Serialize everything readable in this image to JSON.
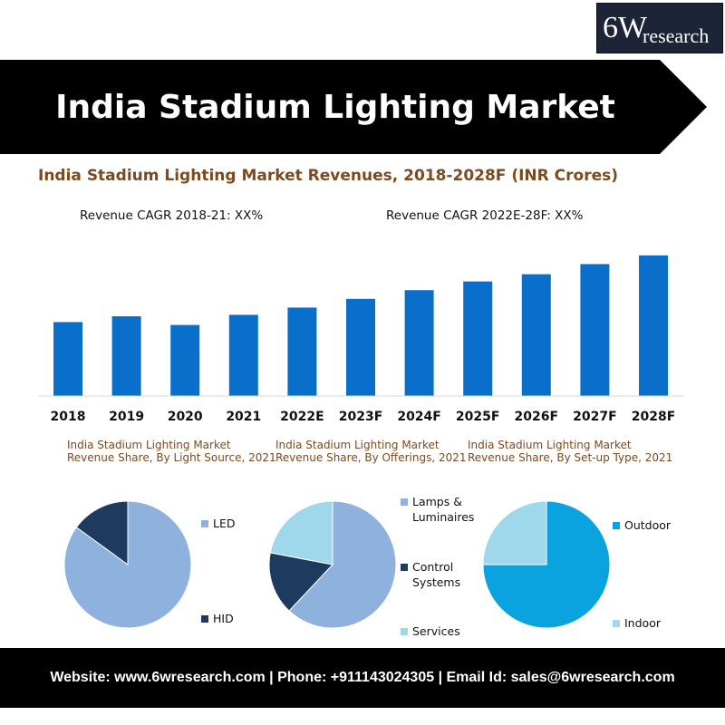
{
  "logo": {
    "big": "6W",
    "small": "research"
  },
  "banner": {
    "title": "India Stadium Lighting Market",
    "bg": "#000000"
  },
  "main_title": "India Stadium Lighting Market Revenues, 2018-2028F (INR Crores)",
  "cagr": {
    "left": "Revenue CAGR 2018-21: XX%",
    "right": "Revenue CAGR 2022E-28F: XX%"
  },
  "pies": [
    {
      "title_line1": "India Stadium Lighting Market",
      "title_line2": "Revenue Share, By Light Source, 2021",
      "legend": [
        "LED",
        "HID"
      ]
    },
    {
      "title_line1": "India Stadium Lighting Market",
      "title_line2": "Revenue Share, By Offerings, 2021",
      "legend": [
        "Lamps &",
        "Luminaires",
        "Control",
        "Systems",
        "Services"
      ]
    },
    {
      "title_line1": "India Stadium Lighting Market",
      "title_line2": "Revenue Share, By Set-up Type, 2021",
      "legend": [
        "Outdoor",
        "Indoor"
      ]
    }
  ],
  "footer": "Website: www.6wresearch.com | Phone: +911143024305 | Email Id: sales@6wresearch.com",
  "colors": {
    "bar": "#0a6fcb",
    "title_brown": "#7a4a22"
  },
  "chart_data": [
    {
      "type": "bar",
      "title": "India Stadium Lighting Market Revenues, 2018-2028F (INR Crores)",
      "categories": [
        "2018",
        "2019",
        "2020",
        "2021",
        "2022E",
        "2023F",
        "2024F",
        "2025F",
        "2026F",
        "2027F",
        "2028F"
      ],
      "values": [
        51,
        55,
        49,
        56,
        61,
        67,
        73,
        79,
        84,
        91,
        97
      ],
      "ylim": [
        0,
        100
      ],
      "grid": false,
      "color": "#0a6fcb"
    },
    {
      "type": "pie",
      "title": "India Stadium Lighting Market Revenue Share, By Light Source, 2021",
      "labels": [
        "LED",
        "HID"
      ],
      "values": [
        85,
        15
      ],
      "colors": [
        "#8eb1de",
        "#1f3a5f"
      ]
    },
    {
      "type": "pie",
      "title": "India Stadium Lighting Market Revenue Share, By Offerings, 2021",
      "labels": [
        "Lamps & Luminaires",
        "Control Systems",
        "Services"
      ],
      "values": [
        62,
        16,
        22
      ],
      "colors": [
        "#8eb1de",
        "#1f3a5f",
        "#9fd8ea"
      ]
    },
    {
      "type": "pie",
      "title": "India Stadium Lighting Market Revenue Share, By Set-up Type, 2021",
      "labels": [
        "Outdoor",
        "Indoor"
      ],
      "values": [
        75,
        25
      ],
      "colors": [
        "#0aa3e0",
        "#9fd8ea"
      ]
    }
  ]
}
